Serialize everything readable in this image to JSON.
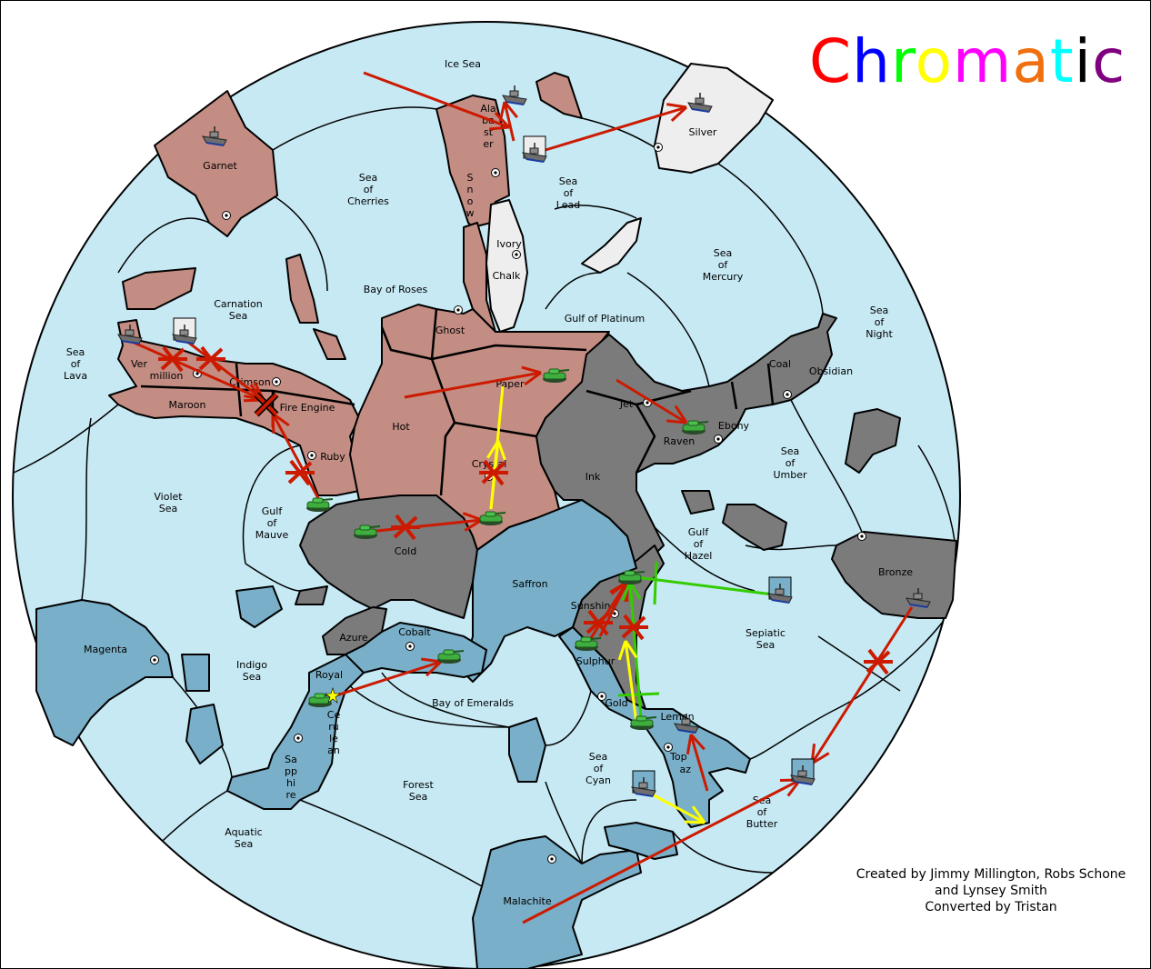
{
  "title": {
    "text": "Chromatic",
    "letters": [
      {
        "ch": "C",
        "color": "#ff0000"
      },
      {
        "ch": "h",
        "color": "#0000ff"
      },
      {
        "ch": "r",
        "color": "#00ff00"
      },
      {
        "ch": "o",
        "color": "#ffff00"
      },
      {
        "ch": "m",
        "color": "#ff00ff"
      },
      {
        "ch": "a",
        "color": "#f07010"
      },
      {
        "ch": "t",
        "color": "#00ffff"
      },
      {
        "ch": "i",
        "color": "#000000"
      },
      {
        "ch": "c",
        "color": "#800080"
      }
    ]
  },
  "credits": {
    "line1": "Created by Jimmy Millington, Robs Schone",
    "line2": "and Lynsey Smith",
    "line3": "Converted by Tristan"
  },
  "colors": {
    "sea": "#c6e9f4",
    "rose_power": "#c38d83",
    "grey_power": "#7b7b7b",
    "blue_power": "#79afc8",
    "white_power": "#eeeeee",
    "move_order": "#cc1a00",
    "support_order": "#ffff00",
    "convoy_order": "#33cc00",
    "army": "#2e9a2e",
    "fleet": "#6e6e6e"
  },
  "provinces": [
    {
      "name": "Ice Sea",
      "lines": [
        "Ice Sea"
      ]
    },
    {
      "name": "Alabaster",
      "lines": [
        "Ala",
        "ba",
        "st",
        "er"
      ]
    },
    {
      "name": "Snow",
      "lines": [
        "S",
        "n",
        "o",
        "w"
      ]
    },
    {
      "name": "Silver",
      "lines": [
        "Silver"
      ]
    },
    {
      "name": "Garnet",
      "lines": [
        "Garnet"
      ]
    },
    {
      "name": "Sea of Cherries",
      "lines": [
        "Sea",
        "of",
        "Cherries"
      ]
    },
    {
      "name": "Sea of Lead",
      "lines": [
        "Sea",
        "of",
        "Lead"
      ]
    },
    {
      "name": "Ivory",
      "lines": [
        "Ivory"
      ]
    },
    {
      "name": "Chalk",
      "lines": [
        "Chalk"
      ]
    },
    {
      "name": "Sea of Mercury",
      "lines": [
        "Sea",
        "of",
        "Mercury"
      ]
    },
    {
      "name": "Carnation Sea",
      "lines": [
        "Carnation",
        "Sea"
      ]
    },
    {
      "name": "Bay of Roses",
      "lines": [
        "Bay of Roses"
      ]
    },
    {
      "name": "Gulf of Platinum",
      "lines": [
        "Gulf of Platinum"
      ]
    },
    {
      "name": "Ghost",
      "lines": [
        "Ghost"
      ]
    },
    {
      "name": "Sea of Night",
      "lines": [
        "Sea",
        "of",
        "Night"
      ]
    },
    {
      "name": "Sea of Lava",
      "lines": [
        "Sea",
        "of",
        "Lava"
      ]
    },
    {
      "name": "Vermillion",
      "lines": [
        "Ver",
        "million"
      ]
    },
    {
      "name": "Crimson",
      "lines": [
        "Crimson"
      ]
    },
    {
      "name": "Maroon",
      "lines": [
        "Maroon"
      ]
    },
    {
      "name": "Fire Engine",
      "lines": [
        "Fire Engine"
      ]
    },
    {
      "name": "Paper",
      "lines": [
        "Paper"
      ]
    },
    {
      "name": "Coal",
      "lines": [
        "Coal"
      ]
    },
    {
      "name": "Obsidian",
      "lines": [
        "Obsidian"
      ]
    },
    {
      "name": "Jet",
      "lines": [
        "Jet"
      ]
    },
    {
      "name": "Ebony",
      "lines": [
        "Ebony"
      ]
    },
    {
      "name": "Raven",
      "lines": [
        "Raven"
      ]
    },
    {
      "name": "Hot",
      "lines": [
        "Hot"
      ]
    },
    {
      "name": "Ruby",
      "lines": [
        "Ruby"
      ]
    },
    {
      "name": "Sea of Umber",
      "lines": [
        "Sea",
        "of",
        "Umber"
      ]
    },
    {
      "name": "Crystal",
      "lines": [
        "Crystal"
      ]
    },
    {
      "name": "Ink",
      "lines": [
        "Ink"
      ]
    },
    {
      "name": "Violet Sea",
      "lines": [
        "Violet",
        "Sea"
      ]
    },
    {
      "name": "Gulf of Mauve",
      "lines": [
        "Gulf",
        "of",
        "Mauve"
      ]
    },
    {
      "name": "Gulf of Hazel",
      "lines": [
        "Gulf",
        "of",
        "Hazel"
      ]
    },
    {
      "name": "Cold",
      "lines": [
        "Cold"
      ]
    },
    {
      "name": "Bronze",
      "lines": [
        "Bronze"
      ]
    },
    {
      "name": "Saffron",
      "lines": [
        "Saffron"
      ]
    },
    {
      "name": "Sunshine",
      "lines": [
        "Sunshine"
      ]
    },
    {
      "name": "Cobalt",
      "lines": [
        "Cobalt"
      ]
    },
    {
      "name": "Azure",
      "lines": [
        "Azure"
      ]
    },
    {
      "name": "Sepiatic Sea",
      "lines": [
        "Sepiatic",
        "Sea"
      ]
    },
    {
      "name": "Magenta",
      "lines": [
        "Magenta"
      ]
    },
    {
      "name": "Royal",
      "lines": [
        "Royal"
      ]
    },
    {
      "name": "Sulphur",
      "lines": [
        "Sulphur"
      ]
    },
    {
      "name": "Indigo Sea",
      "lines": [
        "Indigo",
        "Sea"
      ]
    },
    {
      "name": "Bay of Emeralds",
      "lines": [
        "Bay of Emeralds"
      ]
    },
    {
      "name": "Gold",
      "lines": [
        "Gold"
      ]
    },
    {
      "name": "Lemon",
      "lines": [
        "Lemon"
      ]
    },
    {
      "name": "Cerulean",
      "lines": [
        "Ce",
        "ru",
        "le",
        "an"
      ]
    },
    {
      "name": "Topaz",
      "lines": [
        "Top",
        "az"
      ]
    },
    {
      "name": "Sapphire",
      "lines": [
        "Sa",
        "pp",
        "hi",
        "re"
      ]
    },
    {
      "name": "Sea of Cyan",
      "lines": [
        "Sea",
        "of",
        "Cyan"
      ]
    },
    {
      "name": "Forest Sea",
      "lines": [
        "Forest",
        "Sea"
      ]
    },
    {
      "name": "Sea of Butter",
      "lines": [
        "Sea",
        "of",
        "Butter"
      ]
    },
    {
      "name": "Aquatic Sea",
      "lines": [
        "Aquatic",
        "Sea"
      ]
    },
    {
      "name": "Malachite",
      "lines": [
        "Malachite"
      ]
    }
  ],
  "units": [
    {
      "type": "army",
      "icon": "tank-icon"
    },
    {
      "type": "army",
      "icon": "tank-icon"
    },
    {
      "type": "army",
      "icon": "tank-icon"
    },
    {
      "type": "army",
      "icon": "tank-icon"
    },
    {
      "type": "army",
      "icon": "tank-icon"
    },
    {
      "type": "army",
      "icon": "tank-icon"
    },
    {
      "type": "army",
      "icon": "tank-icon"
    },
    {
      "type": "army",
      "icon": "tank-icon"
    },
    {
      "type": "army",
      "icon": "tank-icon"
    },
    {
      "type": "army",
      "icon": "tank-icon"
    },
    {
      "type": "fleet",
      "icon": "ship-icon"
    },
    {
      "type": "fleet",
      "icon": "ship-icon"
    },
    {
      "type": "fleet",
      "icon": "ship-icon",
      "dislodged": true
    },
    {
      "type": "fleet",
      "icon": "ship-icon"
    },
    {
      "type": "fleet",
      "icon": "ship-icon"
    },
    {
      "type": "fleet",
      "icon": "ship-icon",
      "dislodged": true
    },
    {
      "type": "fleet",
      "icon": "ship-icon"
    },
    {
      "type": "fleet",
      "icon": "ship-icon",
      "dislodged": true
    },
    {
      "type": "fleet",
      "icon": "ship-icon"
    },
    {
      "type": "fleet",
      "icon": "ship-icon",
      "dislodged": true
    },
    {
      "type": "fleet",
      "icon": "ship-icon",
      "dislodged": true
    }
  ]
}
